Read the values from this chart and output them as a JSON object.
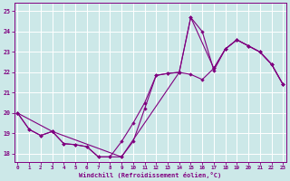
{
  "xlabel": "Windchill (Refroidissement éolien,°C)",
  "bg_color": "#cce8e8",
  "line_color": "#800080",
  "grid_color": "#ffffff",
  "xlim": [
    -0.3,
    23.3
  ],
  "ylim": [
    17.6,
    25.4
  ],
  "xticks": [
    0,
    1,
    2,
    3,
    4,
    5,
    6,
    7,
    8,
    9,
    10,
    11,
    12,
    13,
    14,
    15,
    16,
    17,
    18,
    19,
    20,
    21,
    22,
    23
  ],
  "yticks": [
    18,
    19,
    20,
    21,
    22,
    23,
    24,
    25
  ],
  "s1_x": [
    0,
    1,
    2,
    3,
    4,
    5,
    6,
    7,
    8,
    9,
    10,
    11,
    12,
    13,
    14,
    15,
    16,
    17,
    18,
    19,
    20,
    21,
    22,
    23
  ],
  "s1_y": [
    20.0,
    19.2,
    18.9,
    19.1,
    18.5,
    18.45,
    18.35,
    17.85,
    17.85,
    17.85,
    18.6,
    20.2,
    21.85,
    21.95,
    22.0,
    24.7,
    24.0,
    22.1,
    23.15,
    23.6,
    23.3,
    23.0,
    22.4,
    21.4
  ],
  "s2_x": [
    0,
    1,
    2,
    3,
    4,
    5,
    6,
    7,
    8,
    9,
    10,
    11,
    12,
    13,
    14,
    15,
    16,
    17,
    18,
    19,
    20,
    21,
    22,
    23
  ],
  "s2_y": [
    20.0,
    19.2,
    18.9,
    19.1,
    18.5,
    18.45,
    18.35,
    17.85,
    17.85,
    18.6,
    19.5,
    20.5,
    21.85,
    21.95,
    22.0,
    21.9,
    21.65,
    22.2,
    23.15,
    23.6,
    23.3,
    23.0,
    22.4,
    21.4
  ],
  "s3_x": [
    0,
    3,
    9,
    14,
    15,
    17,
    18,
    19,
    20,
    21,
    22,
    23
  ],
  "s3_y": [
    20.0,
    19.1,
    17.85,
    22.0,
    24.7,
    22.2,
    23.15,
    23.6,
    23.3,
    23.0,
    22.4,
    21.4
  ]
}
